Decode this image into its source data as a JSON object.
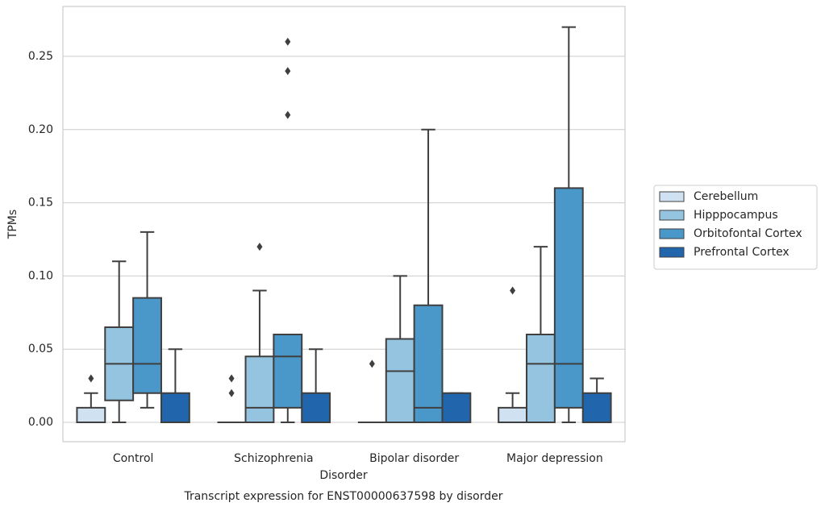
{
  "chart_data": {
    "type": "box",
    "title": "Transcript expression for ENST00000637598 by disorder",
    "x_label": "Disorder",
    "y_label": "TPMs",
    "categories": [
      "Control",
      "Schizophrenia",
      "Bipolar disorder",
      "Major depression"
    ],
    "ylim": [
      -0.0132,
      0.2841
    ],
    "yticks": [
      {
        "value": 0,
        "label": "0.00"
      },
      0.05,
      {
        "value": 0.1,
        "label": "0.10"
      },
      0.15,
      {
        "value": 0.2,
        "label": "0.20"
      },
      0.25
    ],
    "grid": true,
    "legend": "right",
    "series": [
      {
        "name": "Cerebellum",
        "color": "#d0e1f2",
        "boxes": [
          {
            "low": 0,
            "q1": 0,
            "median": 0,
            "q3": 0.01,
            "high": 0.02,
            "outliers": [
              0.03
            ]
          },
          {
            "low": 0,
            "q1": 0,
            "median": 0,
            "q3": 0,
            "high": 0,
            "outliers": [
              0.02,
              0.03
            ]
          },
          {
            "low": 0,
            "q1": 0,
            "median": 0,
            "q3": 0,
            "high": 0,
            "outliers": [
              0.04
            ]
          },
          {
            "low": 0,
            "q1": 0,
            "median": 0,
            "q3": 0.01,
            "high": 0.02,
            "outliers": [
              0.09
            ]
          }
        ]
      },
      {
        "name": "Hipppocampus",
        "color": "#94c4df",
        "boxes": [
          {
            "low": 0,
            "q1": 0.015,
            "median": 0.04,
            "q3": 0.065,
            "high": 0.11,
            "outliers": []
          },
          {
            "low": 0,
            "q1": 0,
            "median": 0.01,
            "q3": 0.045,
            "high": 0.09,
            "outliers": [
              0.12
            ]
          },
          {
            "low": 0,
            "q1": 0,
            "median": 0.035,
            "q3": 0.057,
            "high": 0.1,
            "outliers": []
          },
          {
            "low": 0,
            "q1": 0,
            "median": 0.04,
            "q3": 0.06,
            "high": 0.12,
            "outliers": []
          }
        ]
      },
      {
        "name": "Orbitofontal Cortex",
        "color": "#4a98c9",
        "boxes": [
          {
            "low": 0.01,
            "q1": 0.02,
            "median": 0.04,
            "q3": 0.085,
            "high": 0.13,
            "outliers": []
          },
          {
            "low": 0,
            "q1": 0.01,
            "median": 0.045,
            "q3": 0.06,
            "high": 0.06,
            "outliers": [
              0.21,
              0.24,
              0.26
            ]
          },
          {
            "low": 0,
            "q1": 0,
            "median": 0.01,
            "q3": 0.08,
            "high": 0.2,
            "outliers": []
          },
          {
            "low": 0,
            "q1": 0.01,
            "median": 0.04,
            "q3": 0.16,
            "high": 0.27,
            "outliers": []
          }
        ]
      },
      {
        "name": "Prefrontal Cortex",
        "color": "#2166ac",
        "boxes": [
          {
            "low": 0,
            "q1": 0,
            "median": 0,
            "q3": 0.02,
            "high": 0.05,
            "outliers": []
          },
          {
            "low": 0,
            "q1": 0,
            "median": 0,
            "q3": 0.02,
            "high": 0.05,
            "outliers": []
          },
          {
            "low": 0,
            "q1": 0,
            "median": 0,
            "q3": 0.02,
            "high": 0.02,
            "outliers": []
          },
          {
            "low": 0,
            "q1": 0,
            "median": 0,
            "q3": 0.02,
            "high": 0.03,
            "outliers": []
          }
        ]
      }
    ]
  }
}
